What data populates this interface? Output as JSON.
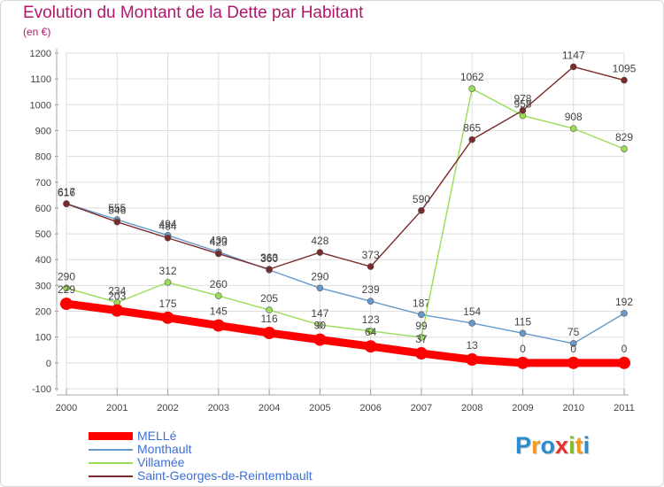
{
  "header": {
    "title": "Evolution du Montant de la Dette par Habitant",
    "subtitle": "(en €)"
  },
  "logo": {
    "text": "Proxiti",
    "letters": [
      {
        "ch": "P",
        "color": "#2a8ccf"
      },
      {
        "ch": "r",
        "color": "#f39a1c"
      },
      {
        "ch": "o",
        "color": "#2a8ccf"
      },
      {
        "ch": "x",
        "color": "#e8312f"
      },
      {
        "ch": "i",
        "color": "#7dbd2e"
      },
      {
        "ch": "t",
        "color": "#f39a1c"
      },
      {
        "ch": "i",
        "color": "#2a8ccf"
      }
    ]
  },
  "chart_data": {
    "type": "line",
    "title": "Evolution du Montant de la Dette par Habitant",
    "ylabel": "(en €)",
    "xlabel": "",
    "x": [
      "2000",
      "2001",
      "2002",
      "2003",
      "2004",
      "2005",
      "2006",
      "2007",
      "2008",
      "2009",
      "2010",
      "2011"
    ],
    "ylim": [
      -100,
      1200
    ],
    "yticks": [
      -100,
      0,
      100,
      200,
      300,
      400,
      500,
      600,
      700,
      800,
      900,
      1000,
      1100,
      1200
    ],
    "grid": true,
    "legend_position": "bottom-left",
    "series": [
      {
        "name": "MELLé",
        "color": "#ff0000",
        "values": [
          229,
          203,
          175,
          145,
          116,
          90,
          64,
          37,
          13,
          0,
          0,
          0
        ]
      },
      {
        "name": "Monthault",
        "color": "#6699cc",
        "values": [
          617,
          555,
          494,
          430,
          360,
          290,
          239,
          187,
          154,
          115,
          75,
          192
        ]
      },
      {
        "name": "Villamée",
        "color": "#99dd55",
        "values": [
          290,
          234,
          312,
          260,
          205,
          147,
          123,
          99,
          1062,
          958,
          908,
          829
        ]
      },
      {
        "name": "Saint-Georges-de-Reintembault",
        "color": "#7a2a2a",
        "values": [
          616,
          546,
          484,
          423,
          363,
          428,
          373,
          590,
          865,
          978,
          1147,
          1095
        ]
      }
    ]
  }
}
